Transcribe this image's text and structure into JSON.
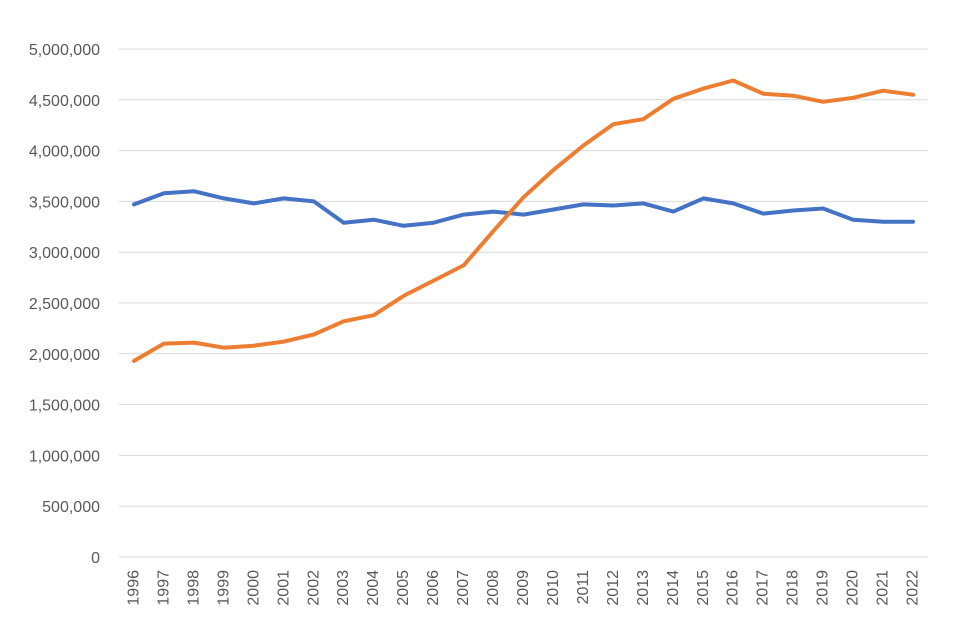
{
  "chart_data": {
    "type": "line",
    "title": "",
    "xlabel": "",
    "ylabel": "",
    "x": [
      "1996",
      "1997",
      "1998",
      "1999",
      "2000",
      "2001",
      "2002",
      "2003",
      "2004",
      "2005",
      "2006",
      "2007",
      "2008",
      "2009",
      "2010",
      "2011",
      "2012",
      "2013",
      "2014",
      "2015",
      "2016",
      "2017",
      "2018",
      "2019",
      "2020",
      "2021",
      "2022"
    ],
    "ylim": [
      0,
      5000000
    ],
    "y_ticks": [
      0,
      500000,
      1000000,
      1500000,
      2000000,
      2500000,
      3000000,
      3500000,
      4000000,
      4500000,
      5000000
    ],
    "y_tick_labels": [
      "0",
      "500,000",
      "1,000,000",
      "1,500,000",
      "2,000,000",
      "2,500,000",
      "3,000,000",
      "3,500,000",
      "4,000,000",
      "4,500,000",
      "5,000,000"
    ],
    "grid": "horizontal",
    "legend": "none",
    "series": [
      {
        "color": "#4472c4",
        "values": [
          3470000,
          3580000,
          3600000,
          3530000,
          3480000,
          3530000,
          3500000,
          3290000,
          3320000,
          3260000,
          3290000,
          3370000,
          3400000,
          3370000,
          3420000,
          3470000,
          3460000,
          3480000,
          3400000,
          3530000,
          3480000,
          3380000,
          3410000,
          3430000,
          3320000,
          3300000,
          3300000
        ]
      },
      {
        "color": "#ed7d31",
        "values": [
          1930000,
          2100000,
          2110000,
          2060000,
          2080000,
          2120000,
          2190000,
          2320000,
          2380000,
          2570000,
          2720000,
          2870000,
          3210000,
          3540000,
          3810000,
          4050000,
          4260000,
          4310000,
          4510000,
          4610000,
          4690000,
          4560000,
          4540000,
          4480000,
          4520000,
          4590000,
          4550000
        ]
      }
    ]
  }
}
